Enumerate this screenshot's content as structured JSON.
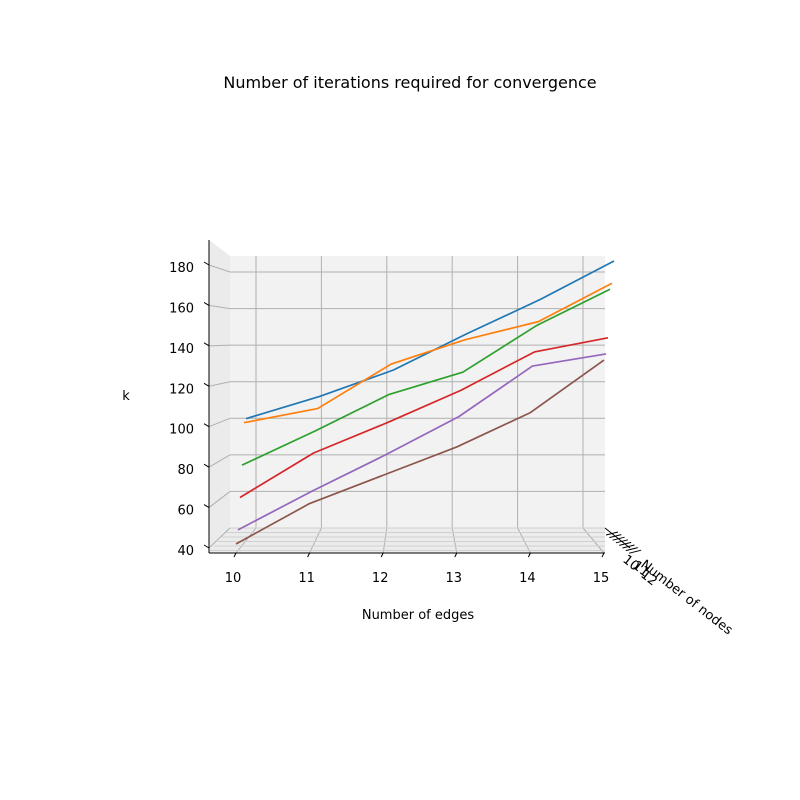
{
  "chart_data": {
    "type": "line",
    "projection": "3d",
    "title": "Number of iterations required for convergence",
    "xlabel": "Number of edges",
    "ylabel": "Number of nodes",
    "zlabel": "k",
    "x": [
      10,
      11,
      12,
      13,
      14,
      15
    ],
    "x_ticks": [
      "10",
      "11",
      "12",
      "13",
      "14",
      "15"
    ],
    "y_ticks": [
      "10",
      "11",
      "12"
    ],
    "z_ticks": [
      "40",
      "60",
      "80",
      "100",
      "120",
      "140",
      "160",
      "180"
    ],
    "xlim": [
      10,
      15
    ],
    "zlim": [
      40,
      185
    ],
    "grid": true,
    "series": [
      {
        "color": "#1f77b4",
        "values": [
          103,
          114,
          127,
          145,
          162,
          181
        ]
      },
      {
        "color": "#ff7f0e",
        "values": [
          101,
          108,
          130,
          142,
          151,
          170
        ]
      },
      {
        "color": "#2ca02c",
        "values": [
          80,
          97,
          115,
          126,
          149,
          167
        ]
      },
      {
        "color": "#d62728",
        "values": [
          64,
          86,
          101,
          117,
          136,
          143
        ]
      },
      {
        "color": "#9467bd",
        "values": [
          48,
          67,
          85,
          104,
          129,
          135
        ]
      },
      {
        "color": "#8c564b",
        "values": [
          41,
          61,
          75,
          89,
          106,
          132
        ]
      }
    ]
  }
}
